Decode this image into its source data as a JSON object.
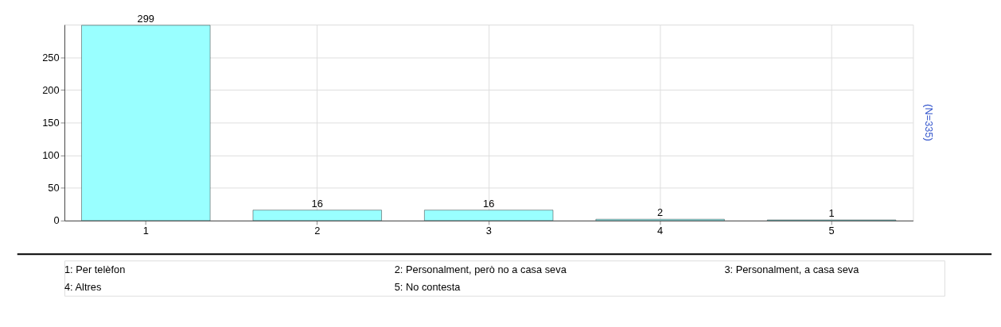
{
  "chart_data": {
    "type": "bar",
    "categories": [
      "1",
      "2",
      "3",
      "4",
      "5"
    ],
    "values": [
      299,
      16,
      16,
      2,
      1
    ],
    "color": "#99ffff",
    "ylim": [
      0,
      300
    ],
    "yticks": [
      0,
      50,
      100,
      150,
      200,
      250
    ],
    "grid": true,
    "data_labels": true,
    "annotations": [
      "(N=335)",
      "1: Per telèfon",
      "2: Personalment, però no a casa seva",
      "3: Personalment, a casa seva",
      "4: Altres",
      "5: No contesta"
    ]
  }
}
